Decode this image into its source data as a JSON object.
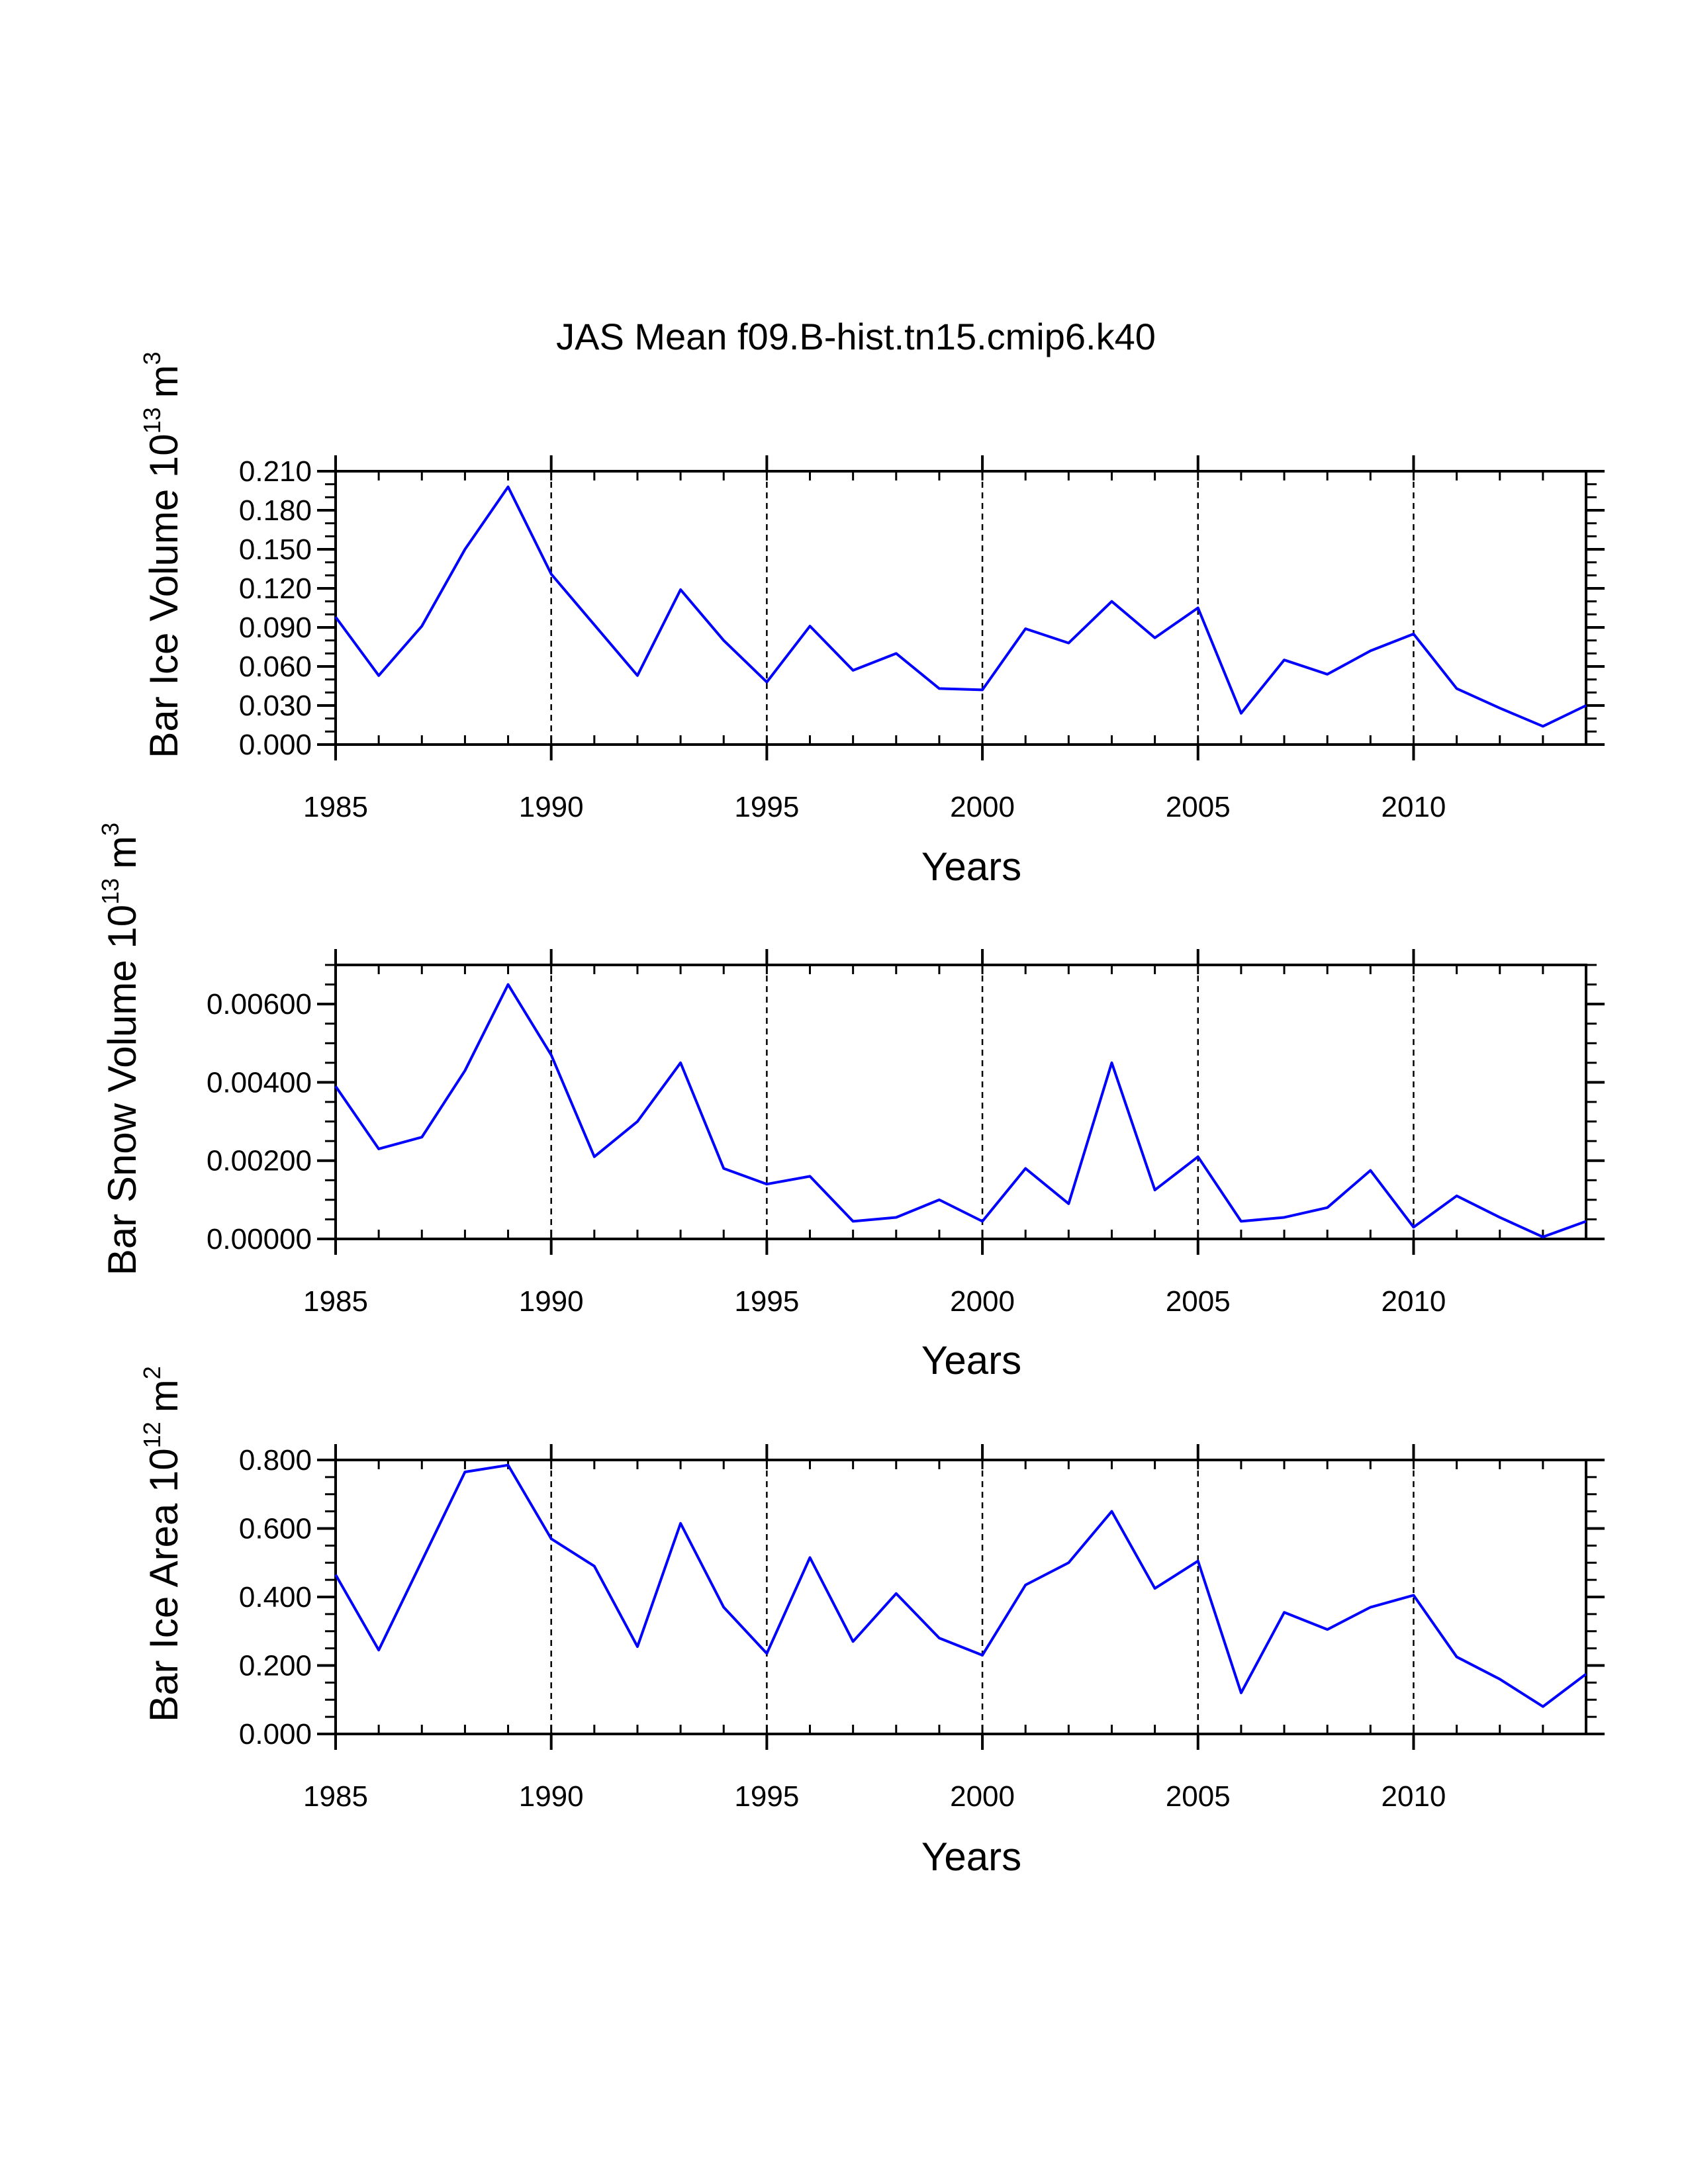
{
  "title": "JAS Mean f09.B-hist.tn15.cmip6.k40",
  "colors": {
    "line": "#0000ff",
    "axis": "#000000",
    "grid": "#000000"
  },
  "chart_data": [
    {
      "type": "line",
      "ylabel_main": "Bar Ice Volume 10",
      "ylabel_exp": "13",
      "ylabel_unit": "m",
      "ylabel_unit_exp": "3",
      "xlabel": "Years",
      "xlim": [
        1985,
        2014
      ],
      "ylim": [
        0.0,
        0.21
      ],
      "xticks": [
        1985,
        1990,
        1995,
        2000,
        2005,
        2010
      ],
      "xtick_labels": [
        "1985",
        "1990",
        "1995",
        "2000",
        "2005",
        "2010"
      ],
      "yticks": [
        0.0,
        0.03,
        0.06,
        0.09,
        0.12,
        0.15,
        0.18,
        0.21
      ],
      "ytick_labels": [
        "0.000",
        "0.030",
        "0.060",
        "0.090",
        "0.120",
        "0.150",
        "0.180",
        "0.210"
      ],
      "yminor_step": 0.01,
      "grid_x": [
        1990,
        1995,
        2000,
        2005,
        2010
      ],
      "x": [
        1985,
        1986,
        1987,
        1988,
        1989,
        1990,
        1991,
        1992,
        1993,
        1994,
        1995,
        1996,
        1997,
        1998,
        1999,
        2000,
        2001,
        2002,
        2003,
        2004,
        2005,
        2006,
        2007,
        2008,
        2009,
        2010,
        2011,
        2012,
        2013,
        2014
      ],
      "series": [
        {
          "name": "Bar Ice Volume",
          "values": [
            0.098,
            0.053,
            0.091,
            0.15,
            0.198,
            0.131,
            0.092,
            0.053,
            0.119,
            0.08,
            0.048,
            0.091,
            0.057,
            0.07,
            0.043,
            0.042,
            0.089,
            0.078,
            0.11,
            0.082,
            0.105,
            0.024,
            0.065,
            0.054,
            0.072,
            0.085,
            0.043,
            0.028,
            0.014,
            0.03
          ]
        }
      ]
    },
    {
      "type": "line",
      "ylabel_main": "Bar Snow Volume 10",
      "ylabel_exp": "13",
      "ylabel_unit": "m",
      "ylabel_unit_exp": "3",
      "xlabel": "Years",
      "xlim": [
        1985,
        2014
      ],
      "ylim": [
        0.0,
        0.007
      ],
      "xticks": [
        1985,
        1990,
        1995,
        2000,
        2005,
        2010
      ],
      "xtick_labels": [
        "1985",
        "1990",
        "1995",
        "2000",
        "2005",
        "2010"
      ],
      "yticks": [
        0.0,
        0.002,
        0.004,
        0.006
      ],
      "ytick_labels": [
        "0.00000",
        "0.00200",
        "0.00400",
        "0.00600"
      ],
      "yminor_step": 0.0005,
      "grid_x": [
        1990,
        1995,
        2000,
        2005,
        2010
      ],
      "x": [
        1985,
        1986,
        1987,
        1988,
        1989,
        1990,
        1991,
        1992,
        1993,
        1994,
        1995,
        1996,
        1997,
        1998,
        1999,
        2000,
        2001,
        2002,
        2003,
        2004,
        2005,
        2006,
        2007,
        2008,
        2009,
        2010,
        2011,
        2012,
        2013,
        2014
      ],
      "series": [
        {
          "name": "Bar Snow Volume",
          "values": [
            0.0039,
            0.0023,
            0.0026,
            0.0043,
            0.0065,
            0.0047,
            0.0021,
            0.003,
            0.0045,
            0.0018,
            0.0014,
            0.0016,
            0.00045,
            0.00055,
            0.001,
            0.00045,
            0.0018,
            0.0009,
            0.0045,
            0.00125,
            0.0021,
            0.00045,
            0.00055,
            0.0008,
            0.00175,
            0.0003,
            0.0011,
            0.00055,
            5e-05,
            0.00045
          ]
        }
      ]
    },
    {
      "type": "line",
      "ylabel_main": "Bar Ice Area 10",
      "ylabel_exp": "12",
      "ylabel_unit": "m",
      "ylabel_unit_exp": "2",
      "xlabel": "Years",
      "xlim": [
        1985,
        2014
      ],
      "ylim": [
        0.0,
        0.8
      ],
      "xticks": [
        1985,
        1990,
        1995,
        2000,
        2005,
        2010
      ],
      "xtick_labels": [
        "1985",
        "1990",
        "1995",
        "2000",
        "2005",
        "2010"
      ],
      "yticks": [
        0.0,
        0.2,
        0.4,
        0.6,
        0.8
      ],
      "ytick_labels": [
        "0.000",
        "0.200",
        "0.400",
        "0.600",
        "0.800"
      ],
      "yminor_step": 0.05,
      "grid_x": [
        1990,
        1995,
        2000,
        2005,
        2010
      ],
      "x": [
        1985,
        1986,
        1987,
        1988,
        1989,
        1990,
        1991,
        1992,
        1993,
        1994,
        1995,
        1996,
        1997,
        1998,
        1999,
        2000,
        2001,
        2002,
        2003,
        2004,
        2005,
        2006,
        2007,
        2008,
        2009,
        2010,
        2011,
        2012,
        2013,
        2014
      ],
      "series": [
        {
          "name": "Bar Ice Area",
          "values": [
            0.465,
            0.245,
            0.505,
            0.765,
            0.785,
            0.57,
            0.49,
            0.255,
            0.615,
            0.37,
            0.235,
            0.515,
            0.27,
            0.41,
            0.28,
            0.23,
            0.435,
            0.5,
            0.65,
            0.425,
            0.505,
            0.12,
            0.355,
            0.305,
            0.37,
            0.405,
            0.225,
            0.16,
            0.08,
            0.175
          ]
        }
      ]
    }
  ]
}
